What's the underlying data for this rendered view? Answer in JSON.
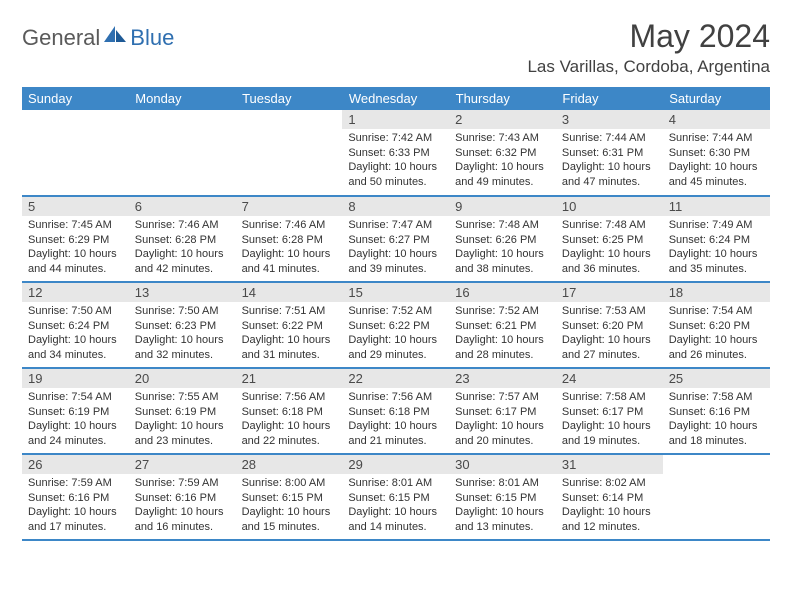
{
  "brand": {
    "part1": "General",
    "part2": "Blue"
  },
  "title": "May 2024",
  "location": "Las Varillas, Cordoba, Argentina",
  "colors": {
    "header_bg": "#3d87c7",
    "header_text": "#ffffff",
    "daynum_bg": "#e7e7e7",
    "text": "#333333",
    "title_color": "#414141",
    "logo_gray": "#5a5a5a",
    "logo_blue": "#2f6fb0",
    "page_bg": "#ffffff"
  },
  "weekdays": [
    "Sunday",
    "Monday",
    "Tuesday",
    "Wednesday",
    "Thursday",
    "Friday",
    "Saturday"
  ],
  "weeks": [
    [
      null,
      null,
      null,
      {
        "n": "1",
        "sr": "7:42 AM",
        "ss": "6:33 PM",
        "dl": "10 hours and 50 minutes."
      },
      {
        "n": "2",
        "sr": "7:43 AM",
        "ss": "6:32 PM",
        "dl": "10 hours and 49 minutes."
      },
      {
        "n": "3",
        "sr": "7:44 AM",
        "ss": "6:31 PM",
        "dl": "10 hours and 47 minutes."
      },
      {
        "n": "4",
        "sr": "7:44 AM",
        "ss": "6:30 PM",
        "dl": "10 hours and 45 minutes."
      }
    ],
    [
      {
        "n": "5",
        "sr": "7:45 AM",
        "ss": "6:29 PM",
        "dl": "10 hours and 44 minutes."
      },
      {
        "n": "6",
        "sr": "7:46 AM",
        "ss": "6:28 PM",
        "dl": "10 hours and 42 minutes."
      },
      {
        "n": "7",
        "sr": "7:46 AM",
        "ss": "6:28 PM",
        "dl": "10 hours and 41 minutes."
      },
      {
        "n": "8",
        "sr": "7:47 AM",
        "ss": "6:27 PM",
        "dl": "10 hours and 39 minutes."
      },
      {
        "n": "9",
        "sr": "7:48 AM",
        "ss": "6:26 PM",
        "dl": "10 hours and 38 minutes."
      },
      {
        "n": "10",
        "sr": "7:48 AM",
        "ss": "6:25 PM",
        "dl": "10 hours and 36 minutes."
      },
      {
        "n": "11",
        "sr": "7:49 AM",
        "ss": "6:24 PM",
        "dl": "10 hours and 35 minutes."
      }
    ],
    [
      {
        "n": "12",
        "sr": "7:50 AM",
        "ss": "6:24 PM",
        "dl": "10 hours and 34 minutes."
      },
      {
        "n": "13",
        "sr": "7:50 AM",
        "ss": "6:23 PM",
        "dl": "10 hours and 32 minutes."
      },
      {
        "n": "14",
        "sr": "7:51 AM",
        "ss": "6:22 PM",
        "dl": "10 hours and 31 minutes."
      },
      {
        "n": "15",
        "sr": "7:52 AM",
        "ss": "6:22 PM",
        "dl": "10 hours and 29 minutes."
      },
      {
        "n": "16",
        "sr": "7:52 AM",
        "ss": "6:21 PM",
        "dl": "10 hours and 28 minutes."
      },
      {
        "n": "17",
        "sr": "7:53 AM",
        "ss": "6:20 PM",
        "dl": "10 hours and 27 minutes."
      },
      {
        "n": "18",
        "sr": "7:54 AM",
        "ss": "6:20 PM",
        "dl": "10 hours and 26 minutes."
      }
    ],
    [
      {
        "n": "19",
        "sr": "7:54 AM",
        "ss": "6:19 PM",
        "dl": "10 hours and 24 minutes."
      },
      {
        "n": "20",
        "sr": "7:55 AM",
        "ss": "6:19 PM",
        "dl": "10 hours and 23 minutes."
      },
      {
        "n": "21",
        "sr": "7:56 AM",
        "ss": "6:18 PM",
        "dl": "10 hours and 22 minutes."
      },
      {
        "n": "22",
        "sr": "7:56 AM",
        "ss": "6:18 PM",
        "dl": "10 hours and 21 minutes."
      },
      {
        "n": "23",
        "sr": "7:57 AM",
        "ss": "6:17 PM",
        "dl": "10 hours and 20 minutes."
      },
      {
        "n": "24",
        "sr": "7:58 AM",
        "ss": "6:17 PM",
        "dl": "10 hours and 19 minutes."
      },
      {
        "n": "25",
        "sr": "7:58 AM",
        "ss": "6:16 PM",
        "dl": "10 hours and 18 minutes."
      }
    ],
    [
      {
        "n": "26",
        "sr": "7:59 AM",
        "ss": "6:16 PM",
        "dl": "10 hours and 17 minutes."
      },
      {
        "n": "27",
        "sr": "7:59 AM",
        "ss": "6:16 PM",
        "dl": "10 hours and 16 minutes."
      },
      {
        "n": "28",
        "sr": "8:00 AM",
        "ss": "6:15 PM",
        "dl": "10 hours and 15 minutes."
      },
      {
        "n": "29",
        "sr": "8:01 AM",
        "ss": "6:15 PM",
        "dl": "10 hours and 14 minutes."
      },
      {
        "n": "30",
        "sr": "8:01 AM",
        "ss": "6:15 PM",
        "dl": "10 hours and 13 minutes."
      },
      {
        "n": "31",
        "sr": "8:02 AM",
        "ss": "6:14 PM",
        "dl": "10 hours and 12 minutes."
      },
      null
    ]
  ],
  "labels": {
    "sunrise": "Sunrise:",
    "sunset": "Sunset:",
    "daylight": "Daylight:"
  }
}
